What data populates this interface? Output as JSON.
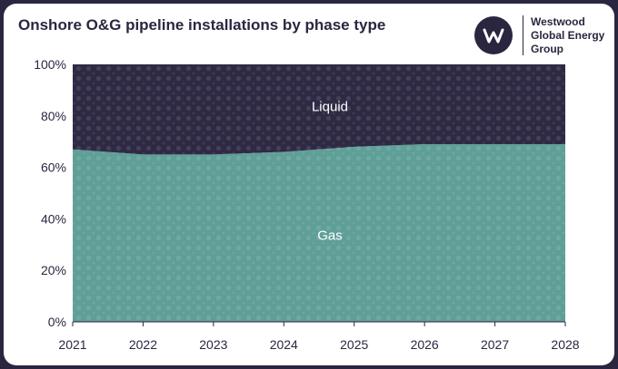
{
  "title": "Onshore O&G pipeline installations by phase type",
  "logo": {
    "lines": [
      "Westwood",
      "Global Energy",
      "Group"
    ]
  },
  "colors": {
    "gas": "#5f9f98",
    "liquid": "#2f2a44",
    "text": "#2b2640"
  },
  "chart_data": {
    "type": "area",
    "stacked": true,
    "normalized": true,
    "title": "Onshore O&G pipeline installations by phase type",
    "xlabel": "",
    "ylabel": "",
    "x": [
      "2021",
      "2022",
      "2023",
      "2024",
      "2025",
      "2026",
      "2027",
      "2028"
    ],
    "ylim": [
      0,
      100
    ],
    "yticks": [
      "0%",
      "20%",
      "40%",
      "60%",
      "80%",
      "100%"
    ],
    "series": [
      {
        "name": "Gas",
        "values": [
          67,
          65,
          65,
          66,
          68,
          69,
          69,
          69
        ]
      },
      {
        "name": "Liquid",
        "values": [
          33,
          35,
          35,
          34,
          32,
          31,
          31,
          31
        ]
      }
    ],
    "grid": false,
    "legend": "inline labels"
  }
}
